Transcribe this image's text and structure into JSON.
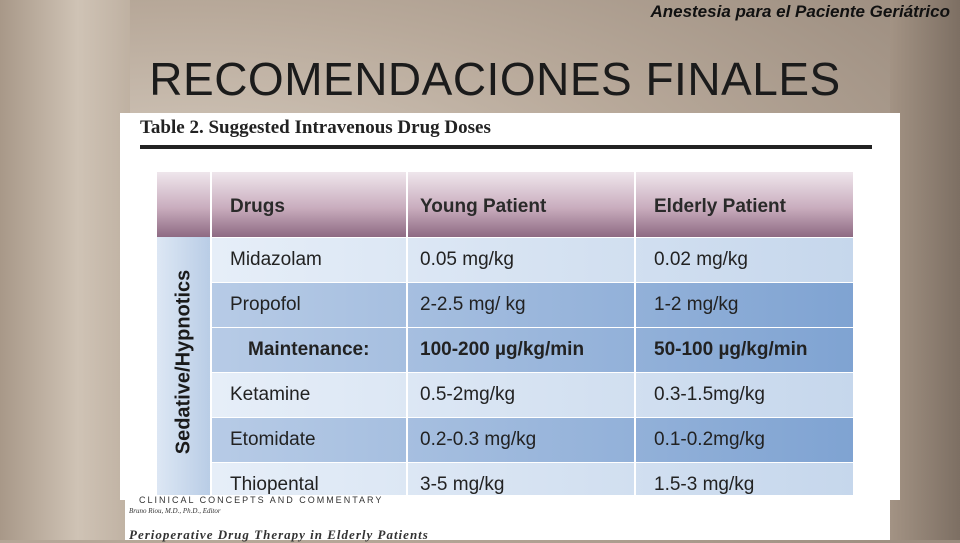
{
  "header": {
    "note": "Anestesia para el Paciente Geriátrico",
    "title": "RECOMENDACIONES FINALES"
  },
  "table": {
    "caption": "Table 2. Suggested Intravenous Drug Doses",
    "columns": [
      "Drugs",
      "Young Patient",
      "Elderly Patient"
    ],
    "group": "Sedative/Hypnotics",
    "rows": [
      [
        "Midazolam",
        "0.05 mg/kg",
        "0.02 mg/kg"
      ],
      [
        "Propofol",
        "2-2.5 mg/ kg",
        "1-2 mg/kg"
      ],
      [
        "Maintenance:",
        "100-200 µg/kg/min",
        "50-100 µg/kg/min"
      ],
      [
        "Ketamine",
        "0.5-2mg/kg",
        "0.3-1.5mg/kg"
      ],
      [
        "Etomidate",
        "0.2-0.3 mg/kg",
        "0.1-0.2mg/kg"
      ],
      [
        "Thiopental",
        "3-5 mg/kg",
        "1.5-3 mg/kg"
      ]
    ]
  },
  "footer": {
    "section": "CLINICAL CONCEPTS AND COMMENTARY",
    "editor": "Bruno Riou, M.D., Ph.D., Editor",
    "article": "Perioperative Drug Therapy in Elderly Patients"
  }
}
